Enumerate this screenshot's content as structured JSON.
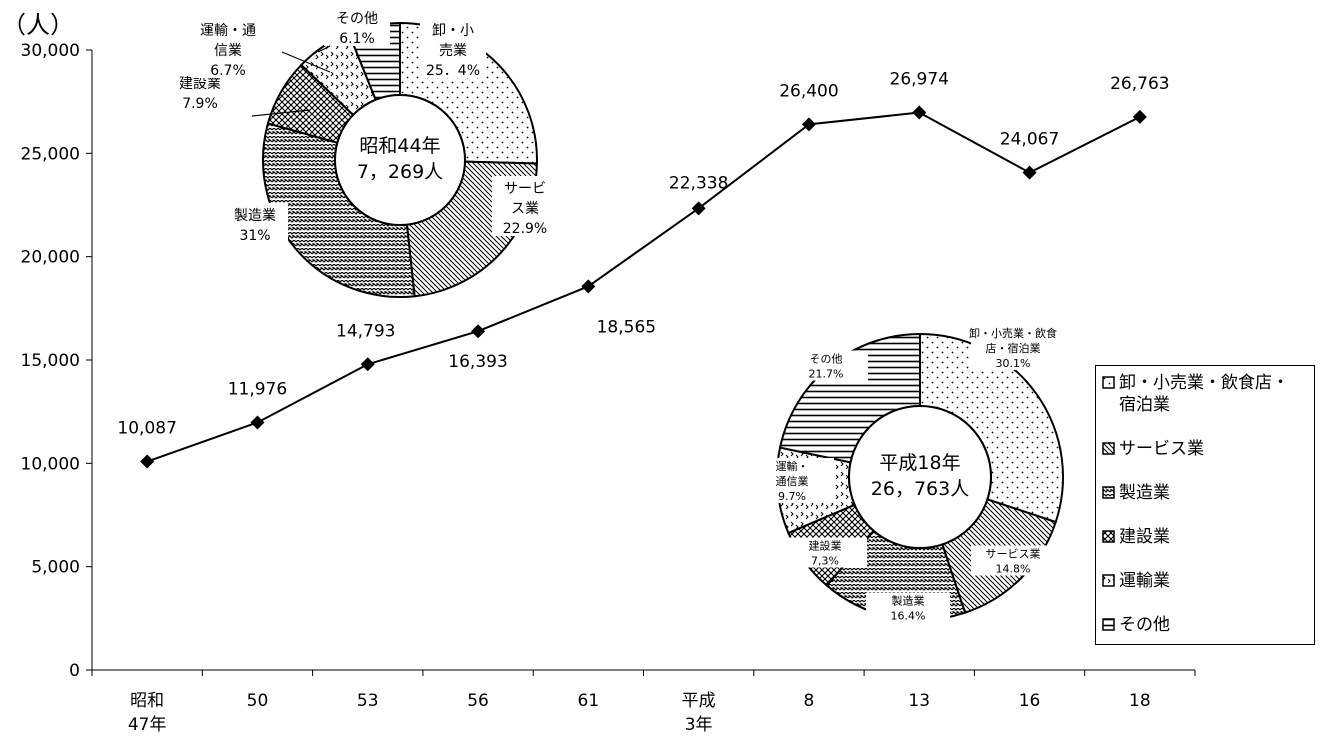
{
  "chart_data": {
    "type": "line",
    "unit_label": "（人）",
    "x_categories": [
      {
        "line1": "昭和",
        "line2": "47年"
      },
      {
        "line1": "50",
        "line2": ""
      },
      {
        "line1": "53",
        "line2": ""
      },
      {
        "line1": "56",
        "line2": ""
      },
      {
        "line1": "61",
        "line2": ""
      },
      {
        "line1": "平成",
        "line2": "3年"
      },
      {
        "line1": "8",
        "line2": ""
      },
      {
        "line1": "13",
        "line2": ""
      },
      {
        "line1": "16",
        "line2": ""
      },
      {
        "line1": "18",
        "line2": ""
      }
    ],
    "values": [
      10087,
      11976,
      14793,
      16393,
      18565,
      22338,
      26400,
      26974,
      24067,
      26763
    ],
    "value_labels": [
      "10,087",
      "11,976",
      "14,793",
      "16,393",
      "18,565",
      "22,338",
      "26,400",
      "26,974",
      "24,067",
      "26,763"
    ],
    "ylim": [
      0,
      30000
    ],
    "yticks": [
      {
        "value": 0,
        "label": "0"
      },
      {
        "value": 5000,
        "label": "5,000"
      },
      {
        "value": 10000,
        "label": "10,000"
      },
      {
        "value": 15000,
        "label": "15,000"
      },
      {
        "value": 20000,
        "label": "20,000"
      },
      {
        "value": 25000,
        "label": "25,000"
      },
      {
        "value": 30000,
        "label": "30,000"
      }
    ],
    "pies": [
      {
        "center_text": [
          "昭和44年",
          "7，269人"
        ],
        "slices": [
          {
            "value": 25.4,
            "label": [
              "卸・小",
              "売業",
              "25．4%"
            ],
            "pattern": "pat-dots"
          },
          {
            "value": 22.9,
            "label": [
              "サービ",
              "ス業",
              "22.9%"
            ],
            "pattern": "pat-diag"
          },
          {
            "value": 31.0,
            "label": [
              "製造業",
              "31%"
            ],
            "pattern": "pat-zig"
          },
          {
            "value": 7.9,
            "label": [
              "建設業",
              "7.9%"
            ],
            "pattern": "pat-cross"
          },
          {
            "value": 6.7,
            "label": [
              "運輸・通",
              "信業",
              "6.7%"
            ],
            "pattern": "pat-check"
          },
          {
            "value": 6.1,
            "label": [
              "その他",
              "6.1%"
            ],
            "pattern": "pat-horiz"
          }
        ]
      },
      {
        "center_text": [
          "平成18年",
          "26，763人"
        ],
        "slices": [
          {
            "value": 30.1,
            "label": [
              "卸・小売業・飲食",
              "店・宿泊業",
              "30.1%"
            ],
            "pattern": "pat-dots"
          },
          {
            "value": 14.8,
            "label": [
              "サービス業",
              "14.8%"
            ],
            "pattern": "pat-diag"
          },
          {
            "value": 16.4,
            "label": [
              "製造業",
              "16.4%"
            ],
            "pattern": "pat-zig"
          },
          {
            "value": 7.3,
            "label": [
              "建設業",
              "7,3%"
            ],
            "pattern": "pat-cross"
          },
          {
            "value": 9.7,
            "label": [
              "運輸・",
              "通信業",
              "9.7%"
            ],
            "pattern": "pat-check"
          },
          {
            "value": 21.7,
            "label": [
              "その他",
              "21.7%"
            ],
            "pattern": "pat-horiz"
          }
        ]
      }
    ],
    "legend": [
      {
        "label": [
          "卸・小売業・飲食店・",
          "宿泊業"
        ],
        "pattern": "pat-dots"
      },
      {
        "label": [
          "サービス業"
        ],
        "pattern": "pat-diag"
      },
      {
        "label": [
          "製造業"
        ],
        "pattern": "pat-zig"
      },
      {
        "label": [
          "建設業"
        ],
        "pattern": "pat-cross"
      },
      {
        "label": [
          "運輸業"
        ],
        "pattern": "pat-check"
      },
      {
        "label": [
          "その他"
        ],
        "pattern": "pat-horiz"
      }
    ],
    "legend_position": "right",
    "grid": false,
    "colors": {
      "line": "#000000",
      "marker": "#000000",
      "background": "#ffffff"
    }
  }
}
